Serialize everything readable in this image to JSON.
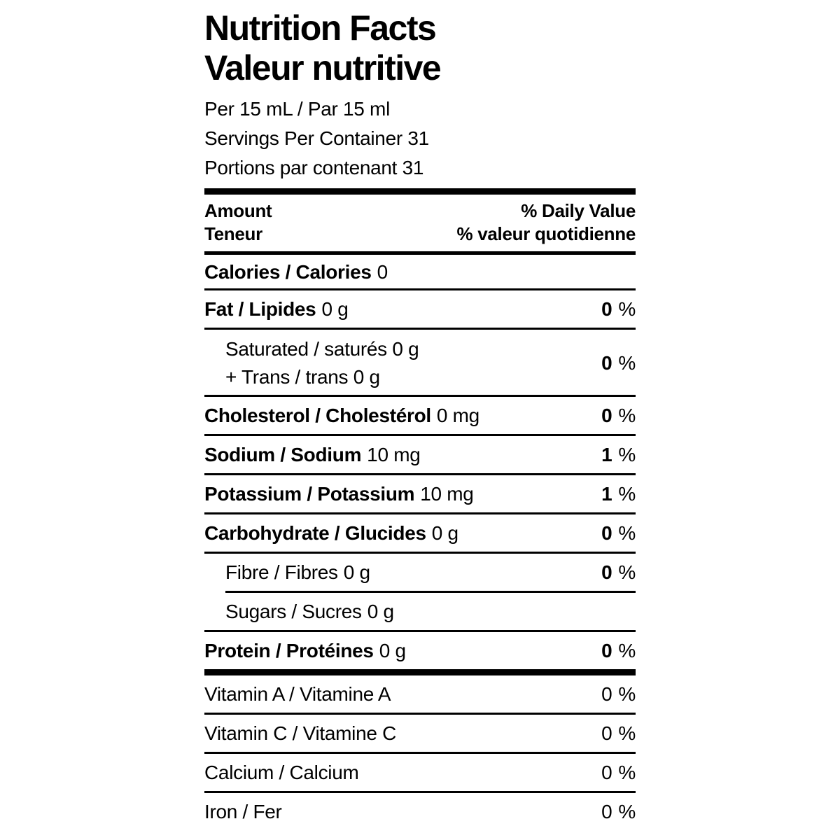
{
  "colors": {
    "text": "#000000",
    "background": "#ffffff",
    "rule": "#000000"
  },
  "label": {
    "title_en": "Nutrition Facts",
    "title_fr": "Valeur nutritive",
    "per_line": "Per 15 mL / Par 15 ml",
    "servings_en": "Servings Per Container 31",
    "servings_fr": "Portions par contenant 31",
    "col_amount_en": "Amount",
    "col_amount_fr": "Teneur",
    "col_dv_en": "% Daily Value",
    "col_dv_fr": "% valeur quotidienne",
    "percent_sign": "%"
  },
  "rows": {
    "calories": {
      "name": "Calories / Calories",
      "amount": "0"
    },
    "fat": {
      "name": "Fat / Lipides",
      "amount": "0 g",
      "dv": "0"
    },
    "saturated": {
      "line1": "Saturated / saturés 0 g",
      "line2": "+ Trans / trans 0 g",
      "dv": "0"
    },
    "cholesterol": {
      "name": "Cholesterol / Cholestérol",
      "amount": "0 mg",
      "dv": "0"
    },
    "sodium": {
      "name": "Sodium / Sodium",
      "amount": "10 mg",
      "dv": "1"
    },
    "potassium": {
      "name": "Potassium / Potassium",
      "amount": "10 mg",
      "dv": "1"
    },
    "carbohydrate": {
      "name": "Carbohydrate / Glucides",
      "amount": "0 g",
      "dv": "0"
    },
    "fibre": {
      "name": "Fibre / Fibres",
      "amount": "0 g",
      "dv": "0"
    },
    "sugars": {
      "name": "Sugars / Sucres",
      "amount": "0 g"
    },
    "protein": {
      "name": "Protein / Protéines",
      "amount": "0 g",
      "dv": "0"
    },
    "vitamin_a": {
      "name": "Vitamin A / Vitamine A",
      "dv": "0"
    },
    "vitamin_c": {
      "name": "Vitamin C / Vitamine C",
      "dv": "0"
    },
    "calcium": {
      "name": "Calcium / Calcium",
      "dv": "0"
    },
    "iron": {
      "name": "Iron / Fer",
      "dv": "0"
    }
  }
}
